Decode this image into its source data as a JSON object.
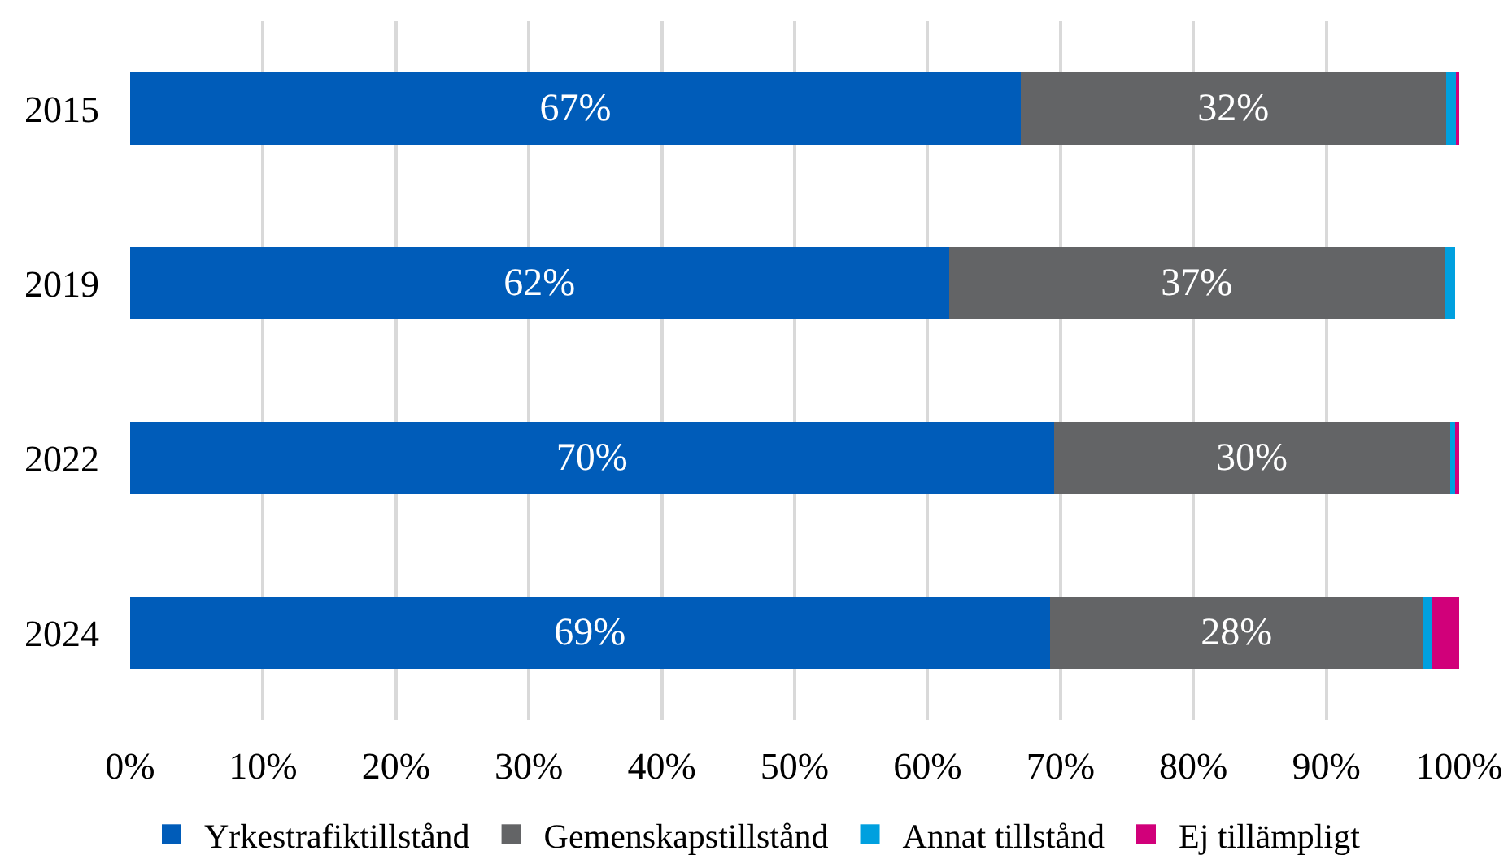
{
  "chart_data": {
    "type": "bar",
    "orientation": "horizontal",
    "stacked": true,
    "categories": [
      "2015",
      "2019",
      "2022",
      "2024"
    ],
    "series": [
      {
        "name": "Yrkestrafiktillstånd",
        "color": "#005cb9",
        "values": [
          67,
          61.6,
          69.5,
          69.2
        ],
        "value_labels": [
          "67%",
          "62%",
          "70%",
          "69%"
        ]
      },
      {
        "name": "Gemenskapstillstånd",
        "color": "#636466",
        "values": [
          32,
          37.3,
          29.8,
          28.1
        ],
        "value_labels": [
          "32%",
          "37%",
          "30%",
          "28%"
        ]
      },
      {
        "name": "Annat tillstånd",
        "color": "#00a0df",
        "values": [
          0.8,
          0.8,
          0.4,
          0.7
        ]
      },
      {
        "name": "Ej tillämpligt",
        "color": "#d1007a",
        "values": [
          0.2,
          null,
          0.3,
          2.0
        ]
      }
    ],
    "xlim": [
      0,
      100
    ],
    "xticks": [
      {
        "value": 0,
        "label": "0%"
      },
      {
        "value": 10,
        "label": "10%"
      },
      {
        "value": 20,
        "label": "20%"
      },
      {
        "value": 30,
        "label": "30%"
      },
      {
        "value": 40,
        "label": "40%"
      },
      {
        "value": 50,
        "label": "50%"
      },
      {
        "value": 60,
        "label": "60%"
      },
      {
        "value": 70,
        "label": "70%"
      },
      {
        "value": 80,
        "label": "80%"
      },
      {
        "value": 90,
        "label": "90%"
      },
      {
        "value": 100,
        "label": "100%"
      }
    ],
    "grid": "x",
    "legend": "bottom"
  }
}
